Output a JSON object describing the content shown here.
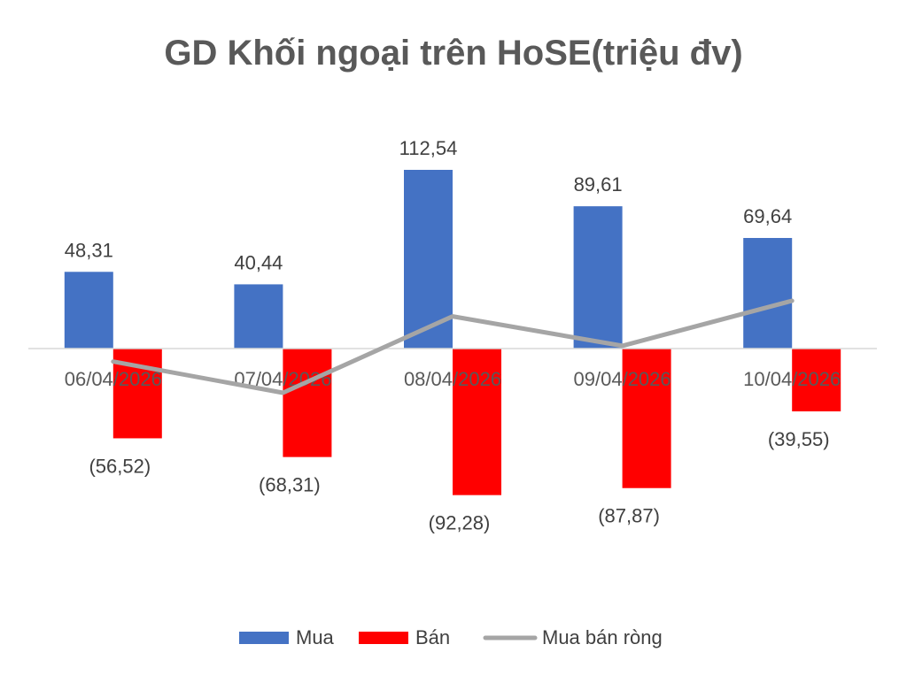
{
  "chart_data": {
    "type": "bar",
    "title": "GD Khối ngoại trên HoSE(triệu đv)",
    "categories": [
      "06/04/2026",
      "07/04/2026",
      "08/04/2026",
      "09/04/2026",
      "10/04/2026"
    ],
    "series": [
      {
        "name": "Mua",
        "type": "bar",
        "color": "#4472C4",
        "values": [
          48.31,
          40.44,
          112.54,
          89.61,
          69.64
        ],
        "labels": [
          "48,31",
          "40,44",
          "112,54",
          "89,61",
          "69,64"
        ]
      },
      {
        "name": "Bán",
        "type": "bar",
        "color": "#FF0000",
        "values": [
          -56.52,
          -68.31,
          -92.28,
          -87.87,
          -39.55
        ],
        "labels": [
          "(56,52)",
          "(68,31)",
          "(92,28)",
          "(87,87)",
          "(39,55)"
        ]
      },
      {
        "name": "Mua bán ròng",
        "type": "line",
        "color": "#A5A5A5",
        "values": [
          -8.21,
          -27.87,
          20.26,
          1.74,
          30.09
        ]
      }
    ],
    "ylim": [
      -130,
      130
    ],
    "grid": false,
    "legend": "bottom"
  }
}
